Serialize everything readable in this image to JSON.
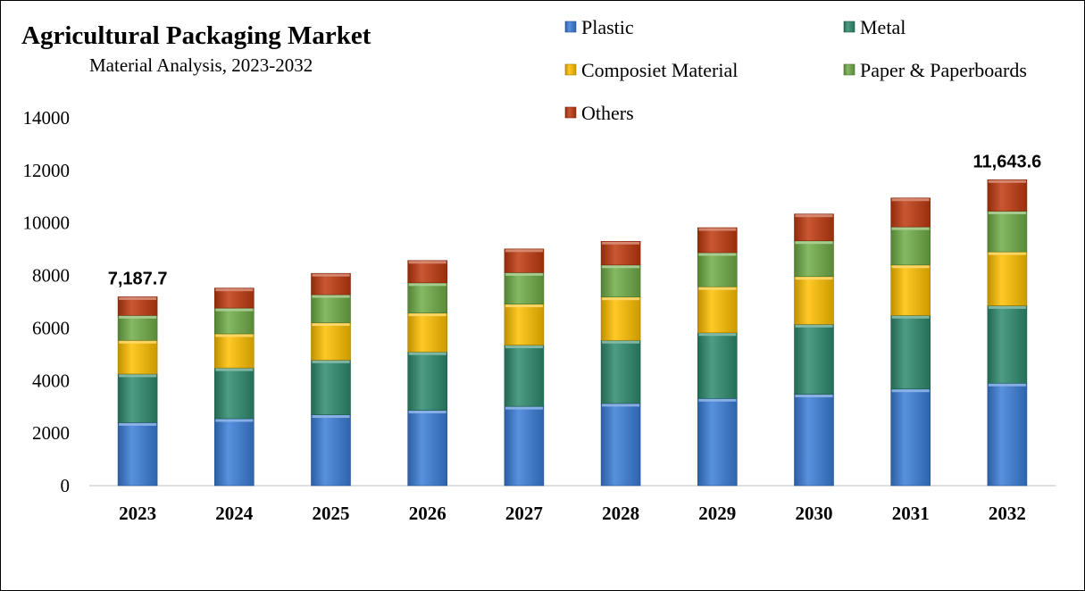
{
  "chart_data": {
    "type": "bar",
    "stacked": true,
    "title": "Agricultural Packaging Market",
    "subtitle": "Material Analysis, 2023-2032",
    "categories": [
      "2023",
      "2024",
      "2025",
      "2026",
      "2027",
      "2028",
      "2029",
      "2030",
      "2031",
      "2032"
    ],
    "series": [
      {
        "name": "Plastic",
        "color": "#3B7DD8",
        "values": [
          2400,
          2550,
          2700,
          2870,
          3020,
          3130,
          3320,
          3480,
          3680,
          3900
        ]
      },
      {
        "name": "Metal",
        "color": "#2E8B6E",
        "values": [
          1850,
          1930,
          2080,
          2220,
          2330,
          2400,
          2500,
          2660,
          2800,
          2950
        ]
      },
      {
        "name": "Composiet Material",
        "color": "#FFC000",
        "values": [
          1280,
          1300,
          1420,
          1480,
          1560,
          1650,
          1750,
          1820,
          1920,
          2050
        ]
      },
      {
        "name": "Paper & Paperboards",
        "color": "#70AD47",
        "values": [
          950,
          980,
          1070,
          1150,
          1200,
          1220,
          1300,
          1360,
          1450,
          1550
        ]
      },
      {
        "name": "Others",
        "color": "#C0390F",
        "values": [
          707.7,
          760,
          810,
          850,
          900,
          900,
          950,
          1020,
          1100,
          1193.6
        ]
      }
    ],
    "ylim": [
      0,
      14000
    ],
    "yticks": [
      "0",
      "2000",
      "4000",
      "6000",
      "8000",
      "10000",
      "12000",
      "14000"
    ],
    "data_labels": [
      {
        "category": "2023",
        "text": "7,187.7"
      },
      {
        "category": "2032",
        "text": "11,643.6"
      }
    ],
    "legend_position": "top-right",
    "grid": false
  }
}
